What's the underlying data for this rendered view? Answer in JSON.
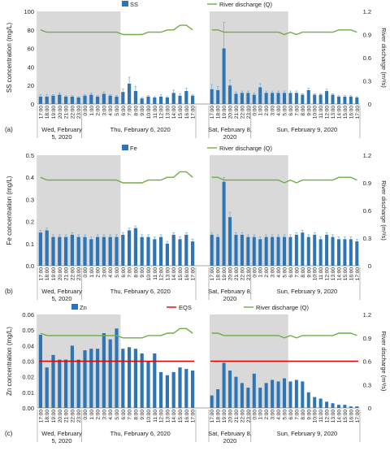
{
  "common": {
    "time_labels": [
      "17:00",
      "18:00",
      "19:00",
      "20:00",
      "21:00",
      "22:00",
      "23:00",
      "0:00",
      "1:00",
      "2:00",
      "3:00",
      "4:00",
      "5:00",
      "6:00",
      "7:00",
      "8:00",
      "9:00",
      "10:00",
      "11:00",
      "12:00",
      "13:00",
      "14:00",
      "15:00",
      "16:00",
      "17:00"
    ],
    "day_labels_week1": [
      [
        "Wed, February",
        "5, 2020"
      ],
      [
        "Thu, February 6, 2020"
      ]
    ],
    "day_labels_week2": [
      [
        "Sat, February 8,",
        "2020"
      ],
      [
        "Sun, February 9, 2020"
      ]
    ],
    "shade_color": "#d9d9d9",
    "bar_color": "#2e75b6",
    "discharge_color": "#70ad47",
    "eqs_color": "#e00000",
    "y2_label": "River discharge (m³/s)"
  },
  "chart_data": [
    {
      "type": "bar",
      "panel_label": "(a)",
      "ylabel": "SS concentration (mg/L)",
      "ylim": [
        0,
        100
      ],
      "yticks": [
        "0",
        "20",
        "40",
        "60",
        "80",
        "100"
      ],
      "y2lim": [
        0,
        1.2
      ],
      "y2ticks": [
        "0",
        "0.3",
        "0.6",
        "0.9",
        "1.2"
      ],
      "legend": [
        "SS",
        "River discharge (Q)"
      ],
      "series": [
        {
          "name": "SS",
          "period": 1,
          "values": [
            8,
            8,
            9,
            10,
            8,
            8,
            7,
            9,
            10,
            8,
            11,
            9,
            8,
            13,
            22,
            14,
            6,
            8,
            7,
            8,
            7,
            12,
            9,
            14,
            9
          ],
          "errors": [
            2,
            2,
            1,
            2,
            1,
            1,
            1,
            1,
            2,
            1,
            2,
            1,
            1,
            3,
            7,
            5,
            1,
            1,
            1,
            2,
            1,
            3,
            2,
            3,
            1
          ]
        },
        {
          "name": "SS",
          "period": 2,
          "values": [
            16,
            15,
            60,
            20,
            11,
            12,
            12,
            10,
            18,
            12,
            12,
            12,
            12,
            12,
            12,
            10,
            15,
            10,
            10,
            14,
            10,
            8,
            8,
            8,
            7
          ],
          "errors": [
            5,
            4,
            28,
            6,
            2,
            2,
            2,
            2,
            4,
            2,
            2,
            2,
            2,
            2,
            2,
            1,
            2,
            1,
            1,
            2,
            1,
            1,
            1,
            1,
            1
          ]
        },
        {
          "name": "River discharge (Q)",
          "period": 1,
          "values": [
            0.96,
            0.93,
            0.93,
            0.93,
            0.93,
            0.93,
            0.93,
            0.93,
            0.93,
            0.93,
            0.93,
            0.93,
            0.93,
            0.9,
            0.9,
            0.9,
            0.9,
            0.93,
            0.93,
            0.93,
            0.96,
            0.96,
            1.02,
            1.02,
            0.96
          ]
        },
        {
          "name": "River discharge (Q)",
          "period": 2,
          "values": [
            0.96,
            0.96,
            0.93,
            0.93,
            0.93,
            0.93,
            0.93,
            0.93,
            0.93,
            0.93,
            0.93,
            0.93,
            0.9,
            0.93,
            0.9,
            0.93,
            0.93,
            0.93,
            0.93,
            0.93,
            0.93,
            0.96,
            0.96,
            0.96,
            0.93
          ]
        }
      ]
    },
    {
      "type": "bar",
      "panel_label": "(b)",
      "ylabel": "Fe concentration (mg/L)",
      "ylim": [
        0,
        0.5
      ],
      "yticks": [
        "0.0",
        "0.1",
        "0.2",
        "0.3",
        "0.4",
        "0.5"
      ],
      "y2lim": [
        0,
        1.2
      ],
      "y2ticks": [
        "0",
        "0.3",
        "0.6",
        "0.9",
        "1.2"
      ],
      "legend": [
        "Fe",
        "River discharge (Q)"
      ],
      "series": [
        {
          "name": "Fe",
          "period": 1,
          "values": [
            0.15,
            0.16,
            0.13,
            0.13,
            0.13,
            0.14,
            0.13,
            0.13,
            0.12,
            0.13,
            0.13,
            0.13,
            0.13,
            0.14,
            0.16,
            0.17,
            0.13,
            0.13,
            0.12,
            0.13,
            0.1,
            0.14,
            0.12,
            0.14,
            0.11
          ],
          "errors": [
            0.01,
            0.01,
            0.01,
            0.01,
            0.01,
            0.01,
            0.01,
            0.01,
            0.01,
            0.01,
            0.01,
            0.01,
            0.01,
            0.01,
            0.01,
            0.01,
            0.01,
            0.01,
            0.01,
            0.01,
            0.01,
            0.01,
            0.01,
            0.01,
            0.01
          ]
        },
        {
          "name": "Fe",
          "period": 2,
          "values": [
            0.14,
            0.13,
            0.38,
            0.22,
            0.14,
            0.14,
            0.13,
            0.13,
            0.12,
            0.13,
            0.13,
            0.13,
            0.13,
            0.13,
            0.14,
            0.15,
            0.13,
            0.14,
            0.12,
            0.14,
            0.13,
            0.12,
            0.12,
            0.12,
            0.11
          ],
          "errors": [
            0.01,
            0.01,
            0.02,
            0.02,
            0.01,
            0.01,
            0.01,
            0.01,
            0.01,
            0.01,
            0.01,
            0.01,
            0.01,
            0.01,
            0.01,
            0.01,
            0.01,
            0.01,
            0.01,
            0.01,
            0.01,
            0.01,
            0.01,
            0.01,
            0.01
          ]
        },
        {
          "name": "River discharge (Q)",
          "period": 1,
          "values": [
            0.96,
            0.93,
            0.93,
            0.93,
            0.93,
            0.93,
            0.93,
            0.93,
            0.93,
            0.93,
            0.93,
            0.93,
            0.93,
            0.9,
            0.9,
            0.9,
            0.9,
            0.93,
            0.93,
            0.93,
            0.96,
            0.96,
            1.02,
            1.02,
            0.96
          ]
        },
        {
          "name": "River discharge (Q)",
          "period": 2,
          "values": [
            0.96,
            0.96,
            0.93,
            0.93,
            0.93,
            0.93,
            0.93,
            0.93,
            0.93,
            0.93,
            0.93,
            0.93,
            0.9,
            0.93,
            0.9,
            0.93,
            0.93,
            0.93,
            0.93,
            0.93,
            0.93,
            0.96,
            0.96,
            0.96,
            0.93
          ]
        }
      ]
    },
    {
      "type": "bar",
      "panel_label": "(c)",
      "ylabel": "Zn concentration (mg/L)",
      "ylim": [
        0,
        0.06
      ],
      "yticks": [
        "0.00",
        "0.01",
        "0.02",
        "0.03",
        "0.04",
        "0.05",
        "0.06"
      ],
      "y2lim": [
        0,
        1.2
      ],
      "y2ticks": [
        "0",
        "0.3",
        "0.6",
        "0.9",
        "1.2"
      ],
      "legend": [
        "Zn",
        "EQS",
        "River discharge (Q)"
      ],
      "eqs": 0.03,
      "series": [
        {
          "name": "Zn",
          "period": 1,
          "values": [
            0.047,
            0.026,
            0.034,
            0.031,
            0.031,
            0.04,
            0.031,
            0.037,
            0.038,
            0.038,
            0.048,
            0.044,
            0.051,
            0.038,
            0.039,
            0.038,
            0.035,
            0.03,
            0.035,
            0.023,
            0.021,
            0.023,
            0.026,
            0.025,
            0.024
          ]
        },
        {
          "name": "Zn",
          "period": 2,
          "values": [
            0.008,
            0.012,
            0.029,
            0.024,
            0.02,
            0.016,
            0.013,
            0.022,
            0.013,
            0.016,
            0.018,
            0.017,
            0.019,
            0.017,
            0.018,
            0.017,
            0.01,
            0.007,
            0.006,
            0.004,
            0.003,
            0.002,
            0.002,
            0.001,
            0.001
          ]
        },
        {
          "name": "River discharge (Q)",
          "period": 1,
          "values": [
            0.96,
            0.93,
            0.93,
            0.93,
            0.93,
            0.93,
            0.93,
            0.93,
            0.93,
            0.93,
            0.93,
            0.93,
            0.93,
            0.9,
            0.9,
            0.9,
            0.9,
            0.93,
            0.93,
            0.93,
            0.96,
            0.96,
            1.02,
            1.02,
            0.96
          ]
        },
        {
          "name": "River discharge (Q)",
          "period": 2,
          "values": [
            0.96,
            0.96,
            0.93,
            0.93,
            0.93,
            0.93,
            0.93,
            0.93,
            0.93,
            0.93,
            0.93,
            0.93,
            0.9,
            0.93,
            0.9,
            0.93,
            0.93,
            0.93,
            0.93,
            0.93,
            0.93,
            0.96,
            0.96,
            0.96,
            0.93
          ]
        }
      ]
    }
  ]
}
